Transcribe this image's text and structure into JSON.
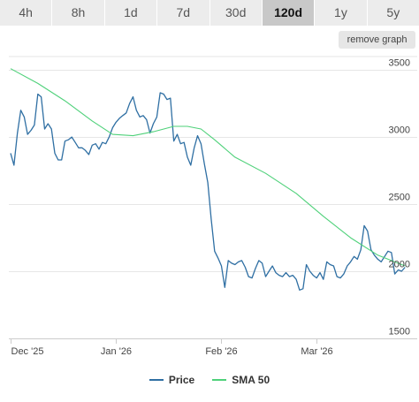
{
  "range_tabs": [
    {
      "label": "4h",
      "active": false
    },
    {
      "label": "8h",
      "active": false
    },
    {
      "label": "1d",
      "active": false
    },
    {
      "label": "7d",
      "active": false
    },
    {
      "label": "30d",
      "active": false
    },
    {
      "label": "120d",
      "active": true
    },
    {
      "label": "1y",
      "active": false
    },
    {
      "label": "5y",
      "active": false
    }
  ],
  "remove_graph_label": "remove graph",
  "colors": {
    "price": "#2f6fa3",
    "sma": "#4fd17a",
    "grid": "#e6e6e6",
    "axis": "#cccccc"
  },
  "chart_data": {
    "type": "line",
    "x_tick_labels": [
      "Dec '25",
      "Jan '26",
      "Feb '26",
      "Mar '26"
    ],
    "x_tick_days": [
      0,
      31,
      62,
      90
    ],
    "y_ticks": [
      1500,
      2000,
      2500,
      3000,
      3500
    ],
    "ylim": [
      1500,
      3600
    ],
    "xlim": [
      0,
      117
    ],
    "grid": true,
    "legend_position": "bottom",
    "series": [
      {
        "name": "Price",
        "color": "#2f6fa3",
        "values": [
          [
            0,
            2880
          ],
          [
            1,
            2790
          ],
          [
            2,
            3030
          ],
          [
            3,
            3200
          ],
          [
            4,
            3150
          ],
          [
            5,
            3020
          ],
          [
            6,
            3050
          ],
          [
            7,
            3090
          ],
          [
            8,
            3320
          ],
          [
            9,
            3300
          ],
          [
            10,
            3060
          ],
          [
            11,
            3100
          ],
          [
            12,
            3060
          ],
          [
            13,
            2880
          ],
          [
            14,
            2830
          ],
          [
            15,
            2830
          ],
          [
            16,
            2970
          ],
          [
            17,
            2980
          ],
          [
            18,
            3000
          ],
          [
            19,
            2960
          ],
          [
            20,
            2920
          ],
          [
            21,
            2920
          ],
          [
            22,
            2900
          ],
          [
            23,
            2870
          ],
          [
            24,
            2940
          ],
          [
            25,
            2950
          ],
          [
            26,
            2910
          ],
          [
            27,
            2960
          ],
          [
            28,
            2950
          ],
          [
            29,
            3000
          ],
          [
            30,
            3070
          ],
          [
            31,
            3110
          ],
          [
            32,
            3140
          ],
          [
            33,
            3160
          ],
          [
            34,
            3180
          ],
          [
            35,
            3250
          ],
          [
            36,
            3300
          ],
          [
            37,
            3200
          ],
          [
            38,
            3150
          ],
          [
            39,
            3160
          ],
          [
            40,
            3130
          ],
          [
            41,
            3030
          ],
          [
            42,
            3100
          ],
          [
            43,
            3150
          ],
          [
            44,
            3330
          ],
          [
            45,
            3320
          ],
          [
            46,
            3280
          ],
          [
            47,
            3290
          ],
          [
            48,
            2970
          ],
          [
            49,
            3020
          ],
          [
            50,
            2950
          ],
          [
            51,
            2960
          ],
          [
            52,
            2850
          ],
          [
            53,
            2790
          ],
          [
            54,
            2920
          ],
          [
            55,
            3010
          ],
          [
            56,
            2950
          ],
          [
            57,
            2800
          ],
          [
            58,
            2660
          ],
          [
            59,
            2390
          ],
          [
            60,
            2150
          ],
          [
            61,
            2100
          ],
          [
            62,
            2040
          ],
          [
            63,
            1880
          ],
          [
            64,
            2080
          ],
          [
            65,
            2060
          ],
          [
            66,
            2050
          ],
          [
            67,
            2070
          ],
          [
            68,
            2080
          ],
          [
            69,
            2030
          ],
          [
            70,
            1960
          ],
          [
            71,
            1950
          ],
          [
            72,
            2020
          ],
          [
            73,
            2080
          ],
          [
            74,
            2060
          ],
          [
            75,
            1960
          ],
          [
            76,
            2000
          ],
          [
            77,
            2040
          ],
          [
            78,
            1990
          ],
          [
            79,
            1970
          ],
          [
            80,
            1960
          ],
          [
            81,
            1990
          ],
          [
            82,
            1960
          ],
          [
            83,
            1970
          ],
          [
            84,
            1940
          ],
          [
            85,
            1860
          ],
          [
            86,
            1870
          ],
          [
            87,
            2050
          ],
          [
            88,
            2000
          ],
          [
            89,
            1970
          ],
          [
            90,
            1950
          ],
          [
            91,
            1990
          ],
          [
            92,
            1940
          ],
          [
            93,
            2070
          ],
          [
            94,
            2050
          ],
          [
            95,
            2040
          ],
          [
            96,
            1960
          ],
          [
            97,
            1950
          ],
          [
            98,
            1980
          ],
          [
            99,
            2040
          ],
          [
            100,
            2070
          ],
          [
            101,
            2110
          ],
          [
            102,
            2090
          ],
          [
            103,
            2160
          ],
          [
            104,
            2340
          ],
          [
            105,
            2300
          ],
          [
            106,
            2160
          ],
          [
            107,
            2120
          ],
          [
            108,
            2090
          ],
          [
            109,
            2070
          ],
          [
            110,
            2110
          ],
          [
            111,
            2150
          ],
          [
            112,
            2140
          ],
          [
            113,
            1980
          ],
          [
            114,
            2010
          ],
          [
            115,
            2000
          ],
          [
            116,
            2030
          ]
        ]
      },
      {
        "name": "SMA 50",
        "color": "#4fd17a",
        "values": [
          [
            0,
            3510
          ],
          [
            8,
            3400
          ],
          [
            16,
            3270
          ],
          [
            24,
            3120
          ],
          [
            30,
            3020
          ],
          [
            36,
            3010
          ],
          [
            42,
            3040
          ],
          [
            48,
            3080
          ],
          [
            52,
            3080
          ],
          [
            56,
            3060
          ],
          [
            60,
            2980
          ],
          [
            66,
            2850
          ],
          [
            75,
            2730
          ],
          [
            84,
            2580
          ],
          [
            92,
            2410
          ],
          [
            100,
            2250
          ],
          [
            108,
            2120
          ],
          [
            116,
            2040
          ]
        ]
      }
    ]
  }
}
